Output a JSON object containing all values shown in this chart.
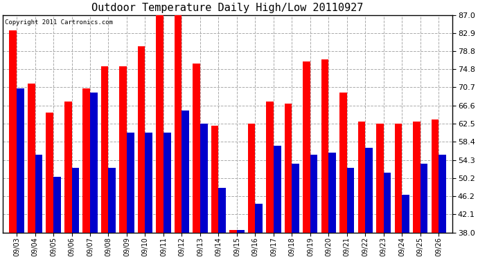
{
  "title": "Outdoor Temperature Daily High/Low 20110927",
  "copyright": "Copyright 2011 Cartronics.com",
  "dates": [
    "09/03",
    "09/04",
    "09/05",
    "09/06",
    "09/07",
    "09/08",
    "09/09",
    "09/10",
    "09/11",
    "09/12",
    "09/13",
    "09/14",
    "09/15",
    "09/16",
    "09/17",
    "09/18",
    "09/19",
    "09/20",
    "09/21",
    "09/22",
    "09/23",
    "09/24",
    "09/25",
    "09/26"
  ],
  "highs": [
    83.5,
    71.5,
    65.0,
    67.5,
    70.5,
    75.5,
    75.5,
    80.0,
    87.0,
    87.0,
    76.0,
    62.0,
    38.5,
    62.5,
    67.5,
    67.0,
    76.5,
    77.0,
    69.5,
    63.0,
    62.5,
    62.5,
    63.0,
    63.5
  ],
  "lows": [
    70.5,
    55.5,
    50.5,
    52.5,
    69.5,
    52.5,
    60.5,
    60.5,
    60.5,
    65.5,
    62.5,
    48.0,
    38.5,
    44.5,
    57.5,
    53.5,
    55.5,
    56.0,
    52.5,
    57.0,
    51.5,
    46.5,
    53.5,
    55.5
  ],
  "high_color": "#ff0000",
  "low_color": "#0000cc",
  "bg_color": "#ffffff",
  "grid_color": "#aaaaaa",
  "ylim_min": 38.0,
  "ylim_max": 87.0,
  "yticks": [
    38.0,
    42.1,
    46.2,
    50.2,
    54.3,
    58.4,
    62.5,
    66.6,
    70.7,
    74.8,
    78.8,
    82.9,
    87.0
  ],
  "bar_width": 0.4
}
